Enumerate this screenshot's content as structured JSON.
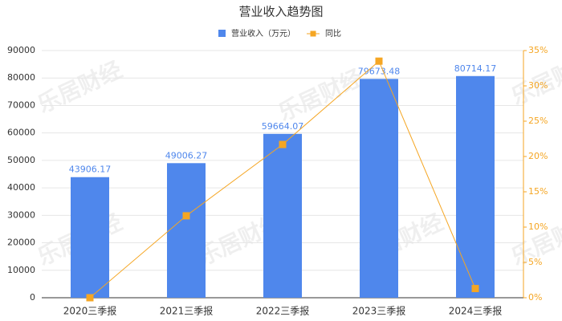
{
  "chart_data": {
    "type": "bar",
    "title": "营业收入趋势图",
    "watermark": "乐居财经",
    "categories": [
      "2020三季报",
      "2021三季报",
      "2022三季报",
      "2023三季报",
      "2024三季报"
    ],
    "series": [
      {
        "name": "营业收入（万元）",
        "type": "bar",
        "color": "#4f87ec",
        "values": [
          43906.17,
          49006.27,
          59664.07,
          79673.48,
          80714.17
        ]
      },
      {
        "name": "同比",
        "type": "line",
        "axis": "y2",
        "color": "#f5a623",
        "values": [
          0,
          11.6,
          21.7,
          33.5,
          1.3
        ]
      }
    ],
    "ylim": [
      0,
      90000
    ],
    "yticks": [
      0,
      10000,
      20000,
      30000,
      40000,
      50000,
      60000,
      70000,
      80000,
      90000
    ],
    "y2lim": [
      0,
      35
    ],
    "y2ticks": [
      {
        "value": 0,
        "label": "0%"
      },
      {
        "value": 5,
        "label": "5%"
      },
      {
        "value": 10,
        "label": "10%"
      },
      {
        "value": 15,
        "label": "15%"
      },
      {
        "value": 20,
        "label": "20%"
      },
      {
        "value": 25,
        "label": "25%"
      },
      {
        "value": 30,
        "label": "30%"
      },
      {
        "value": 35,
        "label": "35%"
      }
    ],
    "grid": true
  }
}
